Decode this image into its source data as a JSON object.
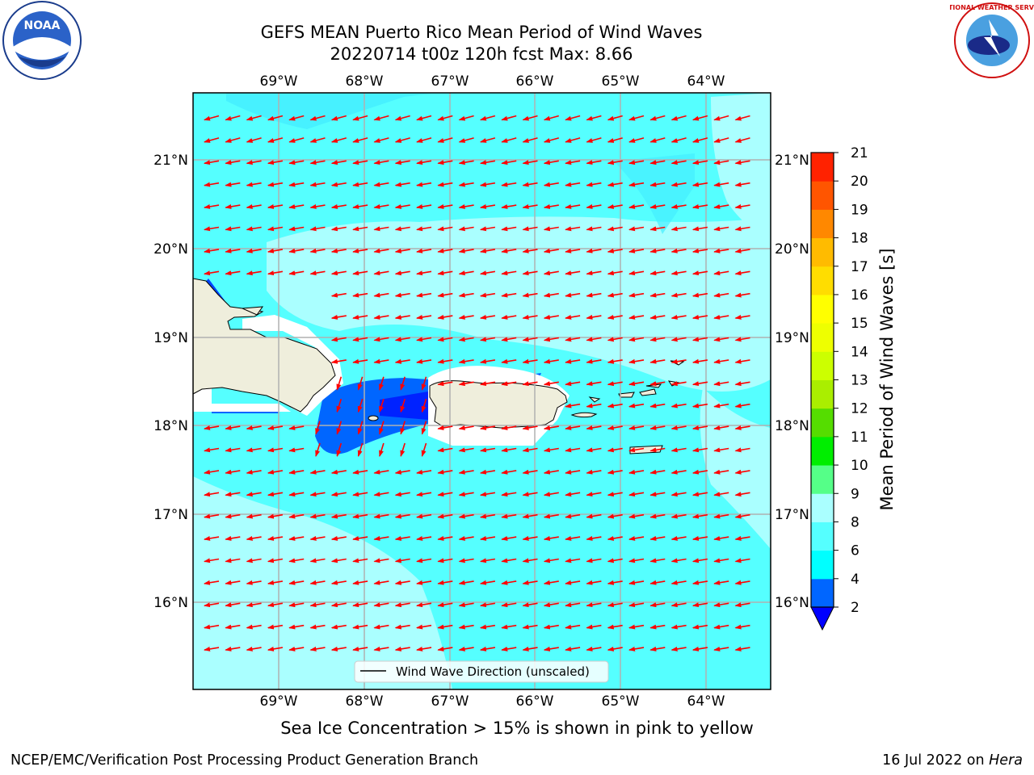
{
  "title": {
    "line1": "GEFS MEAN Puerto Rico Mean Period of Wind Waves",
    "line2": "20220714 t00z 120h fcst   Max: 8.66"
  },
  "caption": "Sea Ice Concentration > 15% is shown in pink to yellow",
  "footer": {
    "left": "NCEP/EMC/Verification Post Processing Product Generation Branch",
    "right_date": "16 Jul 2022 on ",
    "right_machine": "Hera"
  },
  "map": {
    "lon_labels": [
      "69°W",
      "68°W",
      "67°W",
      "66°W",
      "65°W",
      "64°W"
    ],
    "lat_labels": [
      "21°N",
      "20°N",
      "19°N",
      "18°N",
      "17°N",
      "16°N"
    ],
    "legend_label": "Wind Wave Direction (unscaled)",
    "arrow_color": "#ff0000",
    "land_color": "#efeedc"
  },
  "colorbar": {
    "label": "Mean Period of Wind Waves [s]",
    "ticks": [
      "2",
      "4",
      "6",
      "8",
      "9",
      "10",
      "11",
      "12",
      "13",
      "14",
      "15",
      "16",
      "17",
      "18",
      "19",
      "20",
      "21"
    ],
    "colors": [
      "#0066ff",
      "#00ffff",
      "#55ffff",
      "#aaffff",
      "#55ff88",
      "#00ee00",
      "#55dd00",
      "#aaee00",
      "#ccff00",
      "#eeff00",
      "#ffff00",
      "#ffdd00",
      "#ffbb00",
      "#ff8800",
      "#ff5500",
      "#ff2200",
      "#ff0000"
    ],
    "under_color": "#0000ff"
  },
  "logos": {
    "noaa_text": "NOAA",
    "nws_text": "NATIONAL WEATHER SERVICE"
  }
}
